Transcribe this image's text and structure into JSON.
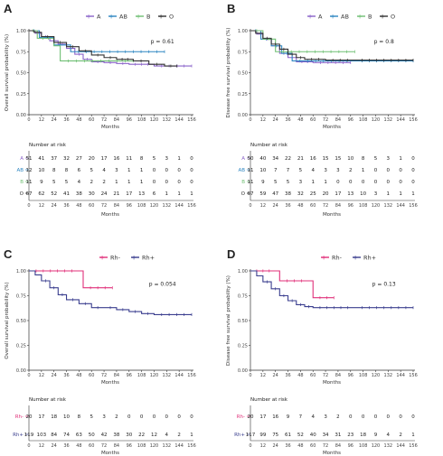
{
  "figure": {
    "panels": [
      {
        "letter": "A",
        "legend": [
          "A",
          "AB",
          "B",
          "O"
        ],
        "ylabel": "Overall survival probability (%)",
        "xlabel": "Months",
        "pvalue": "p = 0.61",
        "risk_title": "Number at risk",
        "risk_xlabel": "Months"
      },
      {
        "letter": "B",
        "legend": [
          "A",
          "AB",
          "B",
          "O"
        ],
        "ylabel": "Disease free survival probability (%)",
        "xlabel": "Months",
        "pvalue": "p = 0.8",
        "risk_title": "Number at risk",
        "risk_xlabel": "Months"
      },
      {
        "letter": "C",
        "legend": [
          "Rh-",
          "Rh+"
        ],
        "ylabel": "Overall survival probability (%)",
        "xlabel": "Months",
        "pvalue": "p = 0.054",
        "risk_title": "Number at risk",
        "risk_xlabel": "Months"
      },
      {
        "letter": "D",
        "legend": [
          "Rh-",
          "Rh+"
        ],
        "ylabel": "Disease free survival probability (%)",
        "xlabel": "Months",
        "pvalue": "p = 0.13",
        "risk_title": "Number at risk",
        "risk_xlabel": "Months"
      }
    ]
  },
  "chart_data": [
    {
      "type": "line",
      "step": true,
      "xlim": [
        0,
        156
      ],
      "ylim": [
        0,
        1
      ],
      "xticks": [
        0,
        12,
        24,
        36,
        48,
        60,
        72,
        84,
        96,
        108,
        120,
        132,
        144,
        156
      ],
      "yticks": [
        "0.00",
        "0.25",
        "0.50",
        "0.75",
        "1.00"
      ],
      "ytick_values": [
        0,
        0.25,
        0.5,
        0.75,
        1
      ],
      "series": [
        {
          "name": "A",
          "color": "#8a63c9",
          "points": [
            [
              0,
              1
            ],
            [
              6,
              0.97
            ],
            [
              12,
              0.93
            ],
            [
              20,
              0.88
            ],
            [
              28,
              0.84
            ],
            [
              36,
              0.79
            ],
            [
              44,
              0.72
            ],
            [
              52,
              0.66
            ],
            [
              60,
              0.63
            ],
            [
              72,
              0.62
            ],
            [
              84,
              0.61
            ],
            [
              96,
              0.6
            ],
            [
              120,
              0.58
            ],
            [
              156,
              0.58
            ]
          ]
        },
        {
          "name": "AB",
          "color": "#2e86c1",
          "points": [
            [
              0,
              1
            ],
            [
              10,
              0.92
            ],
            [
              24,
              0.83
            ],
            [
              36,
              0.83
            ],
            [
              40,
              0.75
            ],
            [
              130,
              0.75
            ]
          ]
        },
        {
          "name": "B",
          "color": "#6fbf73",
          "points": [
            [
              0,
              1
            ],
            [
              8,
              0.91
            ],
            [
              24,
              0.82
            ],
            [
              30,
              0.64
            ],
            [
              100,
              0.64
            ]
          ]
        },
        {
          "name": "O",
          "color": "#333333",
          "points": [
            [
              0,
              1
            ],
            [
              5,
              0.98
            ],
            [
              12,
              0.93
            ],
            [
              24,
              0.86
            ],
            [
              36,
              0.81
            ],
            [
              48,
              0.76
            ],
            [
              60,
              0.71
            ],
            [
              72,
              0.68
            ],
            [
              84,
              0.66
            ],
            [
              100,
              0.64
            ],
            [
              115,
              0.6
            ],
            [
              130,
              0.58
            ],
            [
              142,
              0.58
            ]
          ]
        }
      ],
      "risk_table": {
        "times": [
          0,
          12,
          24,
          36,
          48,
          60,
          72,
          84,
          96,
          108,
          120,
          132,
          144,
          156
        ],
        "rows": [
          {
            "label": "A",
            "color": "#8a63c9",
            "values": [
              51,
              41,
              37,
              32,
              27,
              20,
              17,
              16,
              11,
              8,
              5,
              3,
              1,
              0
            ]
          },
          {
            "label": "AB",
            "color": "#2e86c1",
            "values": [
              12,
              10,
              8,
              8,
              6,
              5,
              4,
              3,
              1,
              1,
              0,
              0,
              0,
              0
            ]
          },
          {
            "label": "B",
            "color": "#6fbf73",
            "values": [
              11,
              9,
              5,
              5,
              4,
              2,
              2,
              1,
              1,
              1,
              0,
              0,
              0,
              0
            ]
          },
          {
            "label": "O",
            "color": "#333333",
            "values": [
              67,
              62,
              52,
              41,
              38,
              30,
              24,
              21,
              17,
              13,
              6,
              1,
              1,
              1
            ]
          }
        ]
      }
    },
    {
      "type": "line",
      "step": true,
      "xlim": [
        0,
        156
      ],
      "ylim": [
        0,
        1
      ],
      "xticks": [
        0,
        12,
        24,
        36,
        48,
        60,
        72,
        84,
        96,
        108,
        120,
        132,
        144,
        156
      ],
      "yticks": [
        "0.00",
        "0.25",
        "0.50",
        "0.75",
        "1.00"
      ],
      "ytick_values": [
        0,
        0.25,
        0.5,
        0.75,
        1
      ],
      "series": [
        {
          "name": "A",
          "color": "#8a63c9",
          "points": [
            [
              0,
              1
            ],
            [
              6,
              0.96
            ],
            [
              12,
              0.9
            ],
            [
              20,
              0.82
            ],
            [
              28,
              0.73
            ],
            [
              36,
              0.68
            ],
            [
              44,
              0.63
            ],
            [
              60,
              0.62
            ],
            [
              96,
              0.62
            ]
          ]
        },
        {
          "name": "AB",
          "color": "#2e86c1",
          "points": [
            [
              0,
              1
            ],
            [
              10,
              0.9
            ],
            [
              20,
              0.82
            ],
            [
              30,
              0.73
            ],
            [
              40,
              0.64
            ],
            [
              100,
              0.64
            ],
            [
              156,
              0.64
            ]
          ]
        },
        {
          "name": "B",
          "color": "#6fbf73",
          "points": [
            [
              0,
              1
            ],
            [
              12,
              0.9
            ],
            [
              24,
              0.75
            ],
            [
              100,
              0.75
            ]
          ]
        },
        {
          "name": "O",
          "color": "#333333",
          "points": [
            [
              0,
              1
            ],
            [
              5,
              0.97
            ],
            [
              12,
              0.91
            ],
            [
              20,
              0.84
            ],
            [
              28,
              0.78
            ],
            [
              36,
              0.72
            ],
            [
              44,
              0.68
            ],
            [
              52,
              0.66
            ],
            [
              72,
              0.65
            ],
            [
              100,
              0.65
            ],
            [
              156,
              0.65
            ]
          ]
        }
      ],
      "risk_table": {
        "times": [
          0,
          12,
          24,
          36,
          48,
          60,
          72,
          84,
          96,
          108,
          120,
          132,
          144,
          156
        ],
        "rows": [
          {
            "label": "A",
            "color": "#8a63c9",
            "values": [
              50,
              40,
              34,
              22,
              21,
              16,
              15,
              15,
              10,
              8,
              5,
              3,
              1,
              0
            ]
          },
          {
            "label": "AB",
            "color": "#2e86c1",
            "values": [
              11,
              10,
              7,
              7,
              5,
              4,
              3,
              3,
              2,
              1,
              0,
              0,
              0,
              0
            ]
          },
          {
            "label": "B",
            "color": "#6fbf73",
            "values": [
              11,
              9,
              5,
              5,
              3,
              1,
              1,
              0,
              0,
              0,
              0,
              0,
              0,
              0
            ]
          },
          {
            "label": "O",
            "color": "#333333",
            "values": [
              67,
              59,
              47,
              38,
              32,
              25,
              20,
              17,
              13,
              10,
              3,
              1,
              1,
              1
            ]
          }
        ]
      }
    },
    {
      "type": "line",
      "step": true,
      "xlim": [
        0,
        156
      ],
      "ylim": [
        0,
        1
      ],
      "xticks": [
        0,
        12,
        24,
        36,
        48,
        60,
        72,
        84,
        96,
        108,
        120,
        132,
        144,
        156
      ],
      "yticks": [
        "0.00",
        "0.25",
        "0.50",
        "0.75",
        "1.00"
      ],
      "ytick_values": [
        0,
        0.25,
        0.5,
        0.75,
        1
      ],
      "series": [
        {
          "name": "Rh-",
          "color": "#e0307a",
          "points": [
            [
              0,
              1
            ],
            [
              48,
              1
            ],
            [
              52,
              0.83
            ],
            [
              80,
              0.83
            ]
          ]
        },
        {
          "name": "Rh+",
          "color": "#3b3f8f",
          "points": [
            [
              0,
              1
            ],
            [
              6,
              0.96
            ],
            [
              12,
              0.9
            ],
            [
              20,
              0.83
            ],
            [
              28,
              0.76
            ],
            [
              36,
              0.71
            ],
            [
              48,
              0.67
            ],
            [
              60,
              0.63
            ],
            [
              72,
              0.63
            ],
            [
              84,
              0.61
            ],
            [
              96,
              0.59
            ],
            [
              108,
              0.57
            ],
            [
              120,
              0.56
            ],
            [
              156,
              0.56
            ]
          ]
        }
      ],
      "risk_table": {
        "times": [
          0,
          12,
          24,
          36,
          48,
          60,
          72,
          84,
          96,
          108,
          120,
          132,
          144,
          156
        ],
        "rows": [
          {
            "label": "Rh-",
            "color": "#e0307a",
            "values": [
              20,
              17,
              18,
              10,
              8,
              5,
              3,
              2,
              0,
              0,
              0,
              0,
              0,
              0
            ]
          },
          {
            "label": "Rh+",
            "color": "#3b3f8f",
            "values": [
              119,
              103,
              84,
              74,
              63,
              50,
              42,
              38,
              30,
              22,
              12,
              4,
              2,
              1
            ]
          }
        ]
      }
    },
    {
      "type": "line",
      "step": true,
      "xlim": [
        0,
        156
      ],
      "ylim": [
        0,
        1
      ],
      "xticks": [
        0,
        12,
        24,
        36,
        48,
        60,
        72,
        84,
        96,
        108,
        120,
        132,
        144,
        156
      ],
      "yticks": [
        "0.00",
        "0.25",
        "0.50",
        "0.75",
        "1.00"
      ],
      "ytick_values": [
        0,
        0.25,
        0.5,
        0.75,
        1
      ],
      "series": [
        {
          "name": "Rh-",
          "color": "#e0307a",
          "points": [
            [
              0,
              1
            ],
            [
              24,
              1
            ],
            [
              28,
              0.9
            ],
            [
              56,
              0.9
            ],
            [
              60,
              0.73
            ],
            [
              80,
              0.73
            ]
          ]
        },
        {
          "name": "Rh+",
          "color": "#3b3f8f",
          "points": [
            [
              0,
              1
            ],
            [
              6,
              0.95
            ],
            [
              12,
              0.89
            ],
            [
              20,
              0.82
            ],
            [
              28,
              0.75
            ],
            [
              36,
              0.7
            ],
            [
              44,
              0.66
            ],
            [
              52,
              0.64
            ],
            [
              60,
              0.63
            ],
            [
              100,
              0.63
            ],
            [
              156,
              0.63
            ]
          ]
        }
      ],
      "risk_table": {
        "times": [
          0,
          12,
          24,
          36,
          48,
          60,
          72,
          84,
          96,
          108,
          120,
          132,
          144,
          156
        ],
        "rows": [
          {
            "label": "Rh-",
            "color": "#e0307a",
            "values": [
              20,
              17,
              16,
              9,
              7,
              4,
              3,
              2,
              0,
              0,
              0,
              0,
              0,
              0
            ]
          },
          {
            "label": "Rh+",
            "color": "#3b3f8f",
            "values": [
              117,
              99,
              75,
              61,
              52,
              40,
              34,
              31,
              23,
              18,
              9,
              4,
              2,
              1
            ]
          }
        ]
      }
    }
  ]
}
